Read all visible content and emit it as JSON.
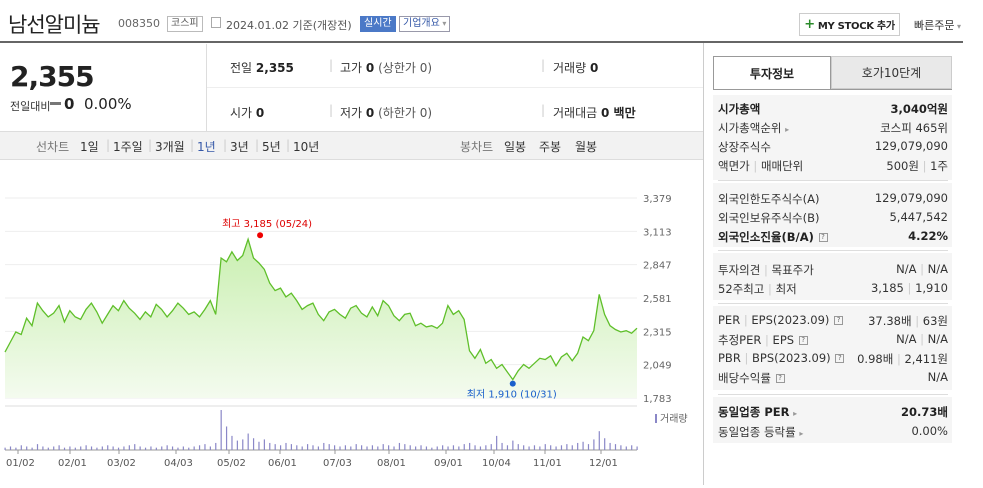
{
  "header": {
    "name": "남선알미늄",
    "code": "008350",
    "market": "코스피",
    "date_info": "2024.01.02 기준(개장전)",
    "realtime": "실시간",
    "company_info": "기업개요",
    "mystock": "MY STOCK 추가",
    "quick_order": "빠른주문"
  },
  "summary": {
    "price": "2,355",
    "change_label": "전일대비",
    "change_value": "0",
    "change_pct": "0.00%",
    "prev_close_label": "전일",
    "prev_close": "2,355",
    "high_label": "고가",
    "high": "0",
    "high_limit": "(상한가 0)",
    "volume_label": "거래량",
    "volume": "0",
    "open_label": "시가",
    "open": "0",
    "low_label": "저가",
    "low": "0",
    "low_limit": "(하한가 0)",
    "amount_label": "거래대금",
    "amount": "0 백만"
  },
  "nav": {
    "line_label": "선차트",
    "line_items": [
      "1일",
      "1주일",
      "3개월",
      "1년",
      "3년",
      "5년",
      "10년"
    ],
    "selected": "1년",
    "candle_label": "봉차트",
    "candle_items": [
      "일봉",
      "주봉",
      "월봉"
    ]
  },
  "chart_data": {
    "type": "line",
    "ylim": [
      1783,
      3379
    ],
    "yticks": [
      "3,379",
      "3,113",
      "2,847",
      "2,581",
      "2,315",
      "2,049",
      "1,783"
    ],
    "xticks": [
      "01/02",
      "02/01",
      "03/02",
      "04/03",
      "05/02",
      "06/01",
      "07/03",
      "08/01",
      "09/01",
      "10/04",
      "11/01",
      "12/01"
    ],
    "annotations": {
      "max": "최고 3,185 (05/24)",
      "min": "최저 1,910 (10/31)"
    },
    "volume_label": "거래량",
    "values": [
      2150,
      2230,
      2310,
      2290,
      2420,
      2360,
      2540,
      2480,
      2430,
      2460,
      2520,
      2390,
      2480,
      2430,
      2410,
      2490,
      2540,
      2470,
      2380,
      2450,
      2520,
      2480,
      2560,
      2500,
      2460,
      2410,
      2470,
      2430,
      2530,
      2490,
      2430,
      2480,
      2540,
      2500,
      2450,
      2470,
      2430,
      2490,
      2560,
      2450,
      2900,
      2870,
      2950,
      2880,
      2920,
      3050,
      2900,
      2860,
      2810,
      2700,
      2640,
      2660,
      2590,
      2620,
      2560,
      2490,
      2520,
      2540,
      2450,
      2400,
      2470,
      2490,
      2450,
      2420,
      2500,
      2520,
      2460,
      2430,
      2510,
      2440,
      2560,
      2520,
      2440,
      2400,
      2450,
      2460,
      2360,
      2380,
      2350,
      2360,
      2340,
      2380,
      2520,
      2450,
      2480,
      2410,
      2160,
      2100,
      2170,
      2060,
      2090,
      2020,
      2050,
      1990,
      1930,
      2000,
      2050,
      2020,
      2060,
      2100,
      2090,
      2120,
      2040,
      2110,
      2140,
      2080,
      2140,
      2270,
      2240,
      2320,
      2610,
      2450,
      2360,
      2330,
      2310,
      2320,
      2300,
      2340
    ],
    "volume": [
      2,
      3,
      2,
      4,
      3,
      2,
      5,
      3,
      2,
      3,
      4,
      2,
      3,
      2,
      3,
      4,
      3,
      2,
      3,
      4,
      3,
      2,
      3,
      4,
      5,
      3,
      2,
      3,
      2,
      3,
      4,
      3,
      2,
      3,
      2,
      3,
      4,
      5,
      3,
      6,
      34,
      20,
      12,
      8,
      9,
      14,
      10,
      7,
      9,
      6,
      5,
      4,
      6,
      5,
      4,
      3,
      5,
      4,
      3,
      6,
      5,
      4,
      3,
      4,
      3,
      5,
      4,
      3,
      4,
      3,
      5,
      4,
      3,
      6,
      5,
      4,
      3,
      4,
      3,
      2,
      3,
      4,
      3,
      4,
      3,
      5,
      6,
      4,
      3,
      4,
      5,
      12,
      6,
      4,
      8,
      5,
      4,
      3,
      4,
      3,
      5,
      4,
      3,
      4,
      5,
      4,
      6,
      7,
      5,
      9,
      16,
      10,
      6,
      5,
      4,
      3,
      4,
      3
    ]
  },
  "right": {
    "tab_invest": "투자정보",
    "tab_orderbook": "호가10단계",
    "mcap_label": "시가총액",
    "mcap": "3,040억원",
    "mcap_rank_label": "시가총액순위",
    "mcap_rank": "코스피 465위",
    "shares_label": "상장주식수",
    "shares": "129,079,090",
    "par_label": "액면가",
    "trade_unit_label": "매매단위",
    "par": "500원",
    "unit": "1주",
    "foreign_limit_label": "외국인한도주식수(A)",
    "foreign_limit": "129,079,090",
    "foreign_hold_label": "외국인보유주식수(B)",
    "foreign_hold": "5,447,542",
    "foreign_ratio_label": "외국인소진율(B/A)",
    "foreign_ratio": "4.22%",
    "opinion_label": "투자의견",
    "target_label": "목표주가",
    "opinion": "N/A",
    "target": "N/A",
    "w52_label": "52주최고",
    "w52_low_label": "최저",
    "w52_high": "3,185",
    "w52_low": "1,910",
    "per_label": "PER",
    "eps_label": "EPS(2023.09)",
    "per": "37.38배",
    "eps": "63원",
    "est_per_label": "추정PER",
    "est_eps_label": "EPS",
    "est_per": "N/A",
    "est_eps": "N/A",
    "pbr_label": "PBR",
    "bps_label": "BPS(2023.09)",
    "pbr": "0.98배",
    "bps": "2,411원",
    "div_label": "배당수익률",
    "div": "N/A",
    "ind_per_label": "동일업종 PER",
    "ind_per": "20.73배",
    "ind_chg_label": "동일업종 등락률",
    "ind_chg": "0.00%"
  }
}
